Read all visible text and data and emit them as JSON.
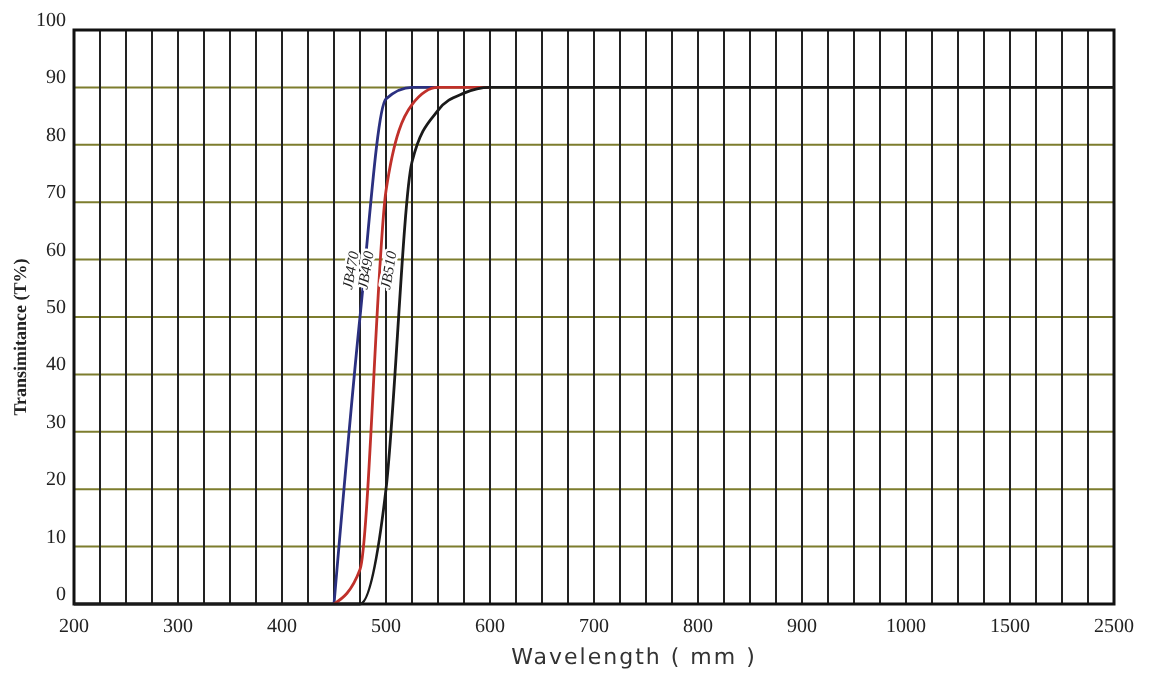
{
  "chart_data": {
    "type": "line",
    "xlabel": "Wavelength ( mm )",
    "ylabel": "Transimitance (T%)",
    "categories": [
      "200",
      null,
      null,
      null,
      "300",
      null,
      null,
      null,
      "400",
      null,
      null,
      null,
      "500",
      null,
      null,
      null,
      "600",
      null,
      null,
      null,
      "700",
      null,
      null,
      null,
      "800",
      null,
      null,
      null,
      "900",
      null,
      null,
      null,
      "1000",
      null,
      null,
      null,
      "1500",
      null,
      null,
      null,
      "2500"
    ],
    "ylim": [
      0,
      100
    ],
    "yticks": [
      0,
      10,
      20,
      30,
      40,
      50,
      60,
      70,
      80,
      90,
      100
    ],
    "grid": true,
    "marker": "none",
    "line_style": "solid",
    "series": [
      {
        "name": "JB470",
        "color": "#2b3080",
        "values": [
          null,
          null,
          null,
          null,
          null,
          null,
          null,
          null,
          null,
          null,
          0,
          50,
          88,
          90,
          90,
          null,
          null,
          null,
          null,
          null,
          null,
          null,
          null,
          null,
          null,
          null,
          null,
          null,
          null,
          null,
          null,
          null,
          null,
          null,
          null,
          null,
          null,
          null,
          null,
          null,
          null
        ]
      },
      {
        "name": "JB490",
        "color": "#c0302a",
        "values": [
          null,
          null,
          null,
          null,
          null,
          null,
          null,
          null,
          null,
          null,
          0,
          6,
          72,
          87,
          90,
          90,
          90,
          null,
          null,
          null,
          null,
          null,
          null,
          null,
          null,
          null,
          null,
          null,
          null,
          null,
          null,
          null,
          null,
          null,
          null,
          null,
          null,
          null,
          null,
          null,
          null
        ]
      },
      {
        "name": "JB510",
        "color": "#1a1a1a",
        "values": [
          0,
          0,
          0,
          0,
          0,
          0,
          0,
          0,
          0,
          0,
          0,
          0,
          20,
          77,
          86,
          89,
          90,
          90,
          90,
          90,
          90,
          90,
          90,
          90,
          90,
          90,
          90,
          90,
          90,
          90,
          90,
          90,
          90,
          90,
          90,
          90,
          90,
          90,
          90,
          90,
          90
        ]
      }
    ]
  }
}
